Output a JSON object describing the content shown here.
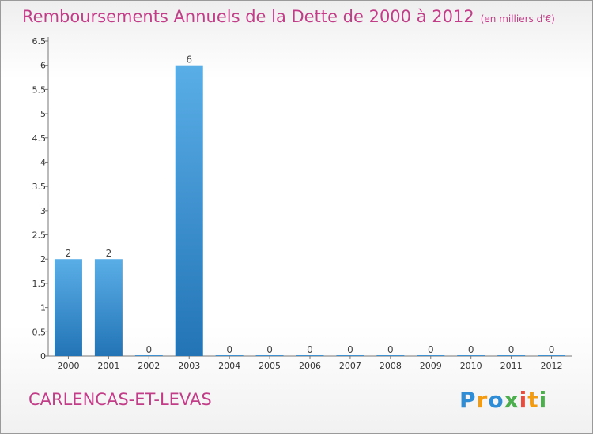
{
  "header": {
    "title": "Remboursements Annuels de la Dette de 2000 à 2012",
    "subtitle": "(en milliers d'€)"
  },
  "footer": {
    "location": "CARLENCAS-ET-LEVAS",
    "logo_text": "Proxiti"
  },
  "colors": {
    "accent": "#c23d88",
    "bar_top": "#5aaee7",
    "bar_bottom": "#2274b5",
    "logo": [
      "#2f8dd6",
      "#f39c12",
      "#2f8dd6",
      "#4cae4c",
      "#e74c3c",
      "#f39c12",
      "#4cae4c"
    ]
  },
  "chart_data": {
    "type": "bar",
    "title": "Remboursements Annuels de la Dette de 2000 à 2012",
    "ylabel": "en milliers d'€",
    "xlabel": "",
    "categories": [
      "2000",
      "2001",
      "2002",
      "2003",
      "2004",
      "2005",
      "2006",
      "2007",
      "2008",
      "2009",
      "2010",
      "2011",
      "2012"
    ],
    "values": [
      2,
      2,
      0,
      6,
      0,
      0,
      0,
      0,
      0,
      0,
      0,
      0,
      0
    ],
    "data_labels": [
      "2",
      "2",
      "0",
      "6",
      "0",
      "0",
      "0",
      "0",
      "0",
      "0",
      "0",
      "0",
      "0"
    ],
    "ylim": [
      0,
      6.5
    ],
    "yticks": [
      0,
      0.5,
      1,
      1.5,
      2,
      2.5,
      3,
      3.5,
      4,
      4.5,
      5,
      5.5,
      6,
      6.5
    ],
    "ytick_labels": [
      "0",
      "0.5",
      "1",
      "1.5",
      "2",
      "2.5",
      "3",
      "3.5",
      "4",
      "4.5",
      "5",
      "5.5",
      "6",
      "6.5"
    ],
    "grid": false
  }
}
